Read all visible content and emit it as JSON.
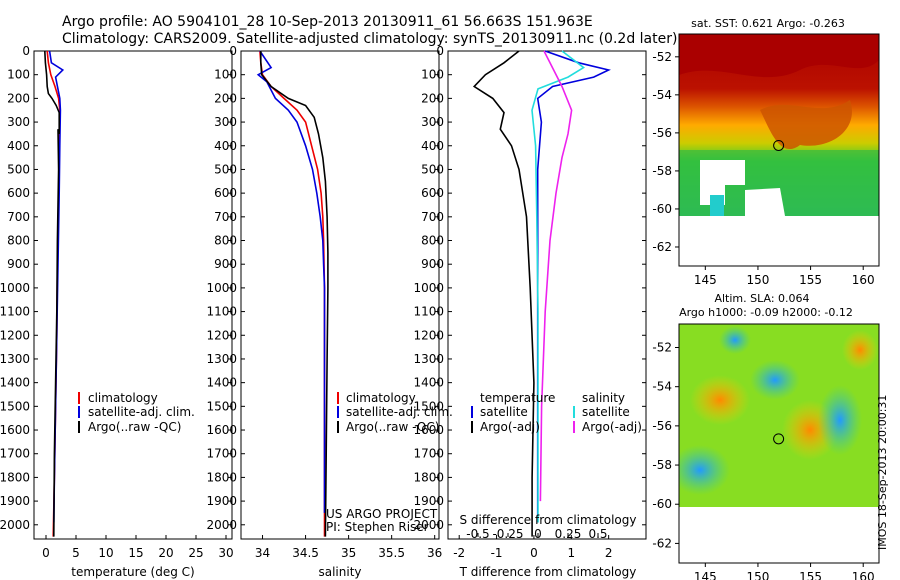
{
  "header": {
    "title_line1": "Argo profile: AO 5904101_28 10-Sep-2013 20130911_61 56.663S 151.963E",
    "title_line2": "Climatology: CARS2009. Satellite-adjusted climatology: synTS_20130911.nc (0.2d later)"
  },
  "stamp": "IMOS 18-Sep-2013 20:00:31",
  "colors": {
    "climatology": "#ee0000",
    "satellite": "#0000dd",
    "argo": "#000000",
    "cyan": "#22dddd",
    "magenta": "#ee22ee"
  },
  "depth_ticks": [
    0,
    100,
    200,
    300,
    400,
    500,
    600,
    700,
    800,
    900,
    1000,
    1100,
    1200,
    1300,
    1400,
    1500,
    1600,
    1700,
    1800,
    1900,
    2000
  ],
  "chart_data": [
    {
      "type": "line",
      "id": "temperature",
      "xlabel": "temperature (deg C)",
      "ylabel": "",
      "xlim": [
        -2,
        31
      ],
      "ylim": [
        2060,
        0
      ],
      "xticks": [
        0,
        5,
        10,
        15,
        20,
        25,
        30
      ],
      "legend": [
        "climatology",
        "satellite-adj. clim.",
        "Argo(..raw -QC)"
      ],
      "series": [
        {
          "name": "climatology",
          "color": "#ee0000",
          "x": [
            0.2,
            0.4,
            0.8,
            1.5,
            2.1,
            2.3,
            2.2,
            2.1,
            1.9,
            1.8,
            1.6,
            1.4,
            1.2
          ],
          "depth": [
            0,
            50,
            100,
            150,
            200,
            250,
            400,
            600,
            900,
            1200,
            1500,
            1800,
            2050
          ]
        },
        {
          "name": "satellite-adj. clim.",
          "color": "#0000dd",
          "x": [
            0.6,
            0.9,
            2.8,
            1.6,
            2.3,
            2.4,
            2.3,
            2.2,
            2.0,
            1.8,
            1.6,
            1.4,
            1.3
          ],
          "depth": [
            0,
            50,
            80,
            110,
            200,
            250,
            400,
            600,
            900,
            1200,
            1500,
            1800,
            1990
          ]
        },
        {
          "name": "Argo(..raw -QC)",
          "color": "#000000",
          "x": [
            -0.2,
            -0.1,
            0.1,
            0.2,
            0.4,
            1.0,
            1.7,
            2.2,
            2.2,
            2.0,
            2.1,
            1.9,
            1.8,
            1.6,
            1.4,
            1.3
          ],
          "depth": [
            0,
            50,
            100,
            150,
            180,
            200,
            230,
            260,
            350,
            330,
            500,
            800,
            1100,
            1400,
            1700,
            2050
          ]
        }
      ]
    },
    {
      "type": "line",
      "id": "salinity",
      "xlabel": "salinity",
      "ylabel": "",
      "xlim": [
        33.75,
        36.05
      ],
      "ylim": [
        2060,
        0
      ],
      "xticks": [
        34,
        34.5,
        35,
        35.5,
        36
      ],
      "legend": [
        "climatology",
        "satellite-adj. clim.",
        "Argo(..raw -QC)"
      ],
      "annotation": [
        "US ARGO PROJECT",
        "PI: Stephen Riser"
      ],
      "series": [
        {
          "name": "climatology",
          "color": "#ee0000",
          "x": [
            33.97,
            33.98,
            34.0,
            34.1,
            34.25,
            34.4,
            34.5,
            34.57,
            34.64,
            34.68,
            34.7,
            34.71,
            34.72,
            34.72,
            34.72,
            34.72
          ],
          "depth": [
            0,
            50,
            100,
            150,
            200,
            250,
            300,
            400,
            500,
            600,
            700,
            800,
            1000,
            1400,
            1800,
            2050
          ]
        },
        {
          "name": "satellite-adj. clim.",
          "color": "#0000dd",
          "x": [
            33.97,
            34.1,
            33.95,
            34.05,
            34.15,
            34.3,
            34.4,
            34.5,
            34.58,
            34.63,
            34.67,
            34.7,
            34.71,
            34.72,
            34.72,
            34.72,
            34.72
          ],
          "depth": [
            0,
            70,
            100,
            130,
            200,
            250,
            300,
            400,
            500,
            600,
            700,
            800,
            900,
            1000,
            1400,
            1800,
            1950
          ]
        },
        {
          "name": "Argo(..raw -QC)",
          "color": "#000000",
          "x": [
            33.98,
            33.98,
            33.99,
            34.1,
            34.3,
            34.5,
            34.6,
            34.65,
            34.7,
            34.73,
            34.75,
            34.76,
            34.76,
            34.75,
            34.74,
            34.73
          ],
          "depth": [
            0,
            50,
            100,
            150,
            200,
            230,
            280,
            350,
            450,
            550,
            700,
            850,
            1000,
            1300,
            1700,
            2050
          ]
        }
      ]
    },
    {
      "type": "line",
      "id": "difference",
      "xlabel": "T difference from climatology",
      "x2label": "S difference from climatology",
      "ylabel": "",
      "xlim": [
        -2.3,
        3.0
      ],
      "ylim": [
        2060,
        0
      ],
      "xticks": [
        -2,
        -1,
        0,
        1,
        2
      ],
      "x2lim": [
        -0.75,
        0.9
      ],
      "x2ticks": [
        -0.5,
        -0.25,
        0,
        0.25,
        0.5
      ],
      "legend_temperature": [
        "temperature",
        "satellite",
        "Argo(-adj)"
      ],
      "legend_salinity": [
        "salinity",
        "satellite",
        "Argo(-adj)"
      ],
      "series": [
        {
          "name": "satellite",
          "group": "temperature",
          "axis": "T",
          "color": "#0000dd",
          "x": [
            0.3,
            1.2,
            2.0,
            1.6,
            0.5,
            0.1,
            0.2,
            0.1,
            0.1,
            0.1,
            0.1,
            0.1,
            0.1
          ],
          "depth": [
            0,
            50,
            80,
            110,
            150,
            200,
            300,
            500,
            800,
            1100,
            1400,
            1700,
            1990
          ]
        },
        {
          "name": "Argo(-adj)",
          "group": "temperature",
          "axis": "T",
          "color": "#000000",
          "x": [
            -0.4,
            -0.8,
            -1.3,
            -1.6,
            -1.1,
            -0.8,
            -0.9,
            -0.6,
            -0.4,
            -0.2,
            -0.1,
            0.0,
            -0.05,
            -0.05
          ],
          "depth": [
            0,
            50,
            100,
            150,
            200,
            260,
            330,
            400,
            500,
            700,
            1000,
            1400,
            1800,
            2050
          ]
        },
        {
          "name": "satellite",
          "group": "salinity",
          "axis": "S",
          "color": "#22dddd",
          "x": [
            0.2,
            0.38,
            0.25,
            0.0,
            -0.05,
            -0.02,
            -0.01,
            0.0,
            0.0
          ],
          "depth": [
            0,
            70,
            110,
            160,
            250,
            400,
            700,
            1100,
            1990
          ]
        },
        {
          "name": "Argo(-adj)",
          "group": "salinity",
          "axis": "S",
          "color": "#ee22ee",
          "x": [
            0.05,
            0.1,
            0.2,
            0.28,
            0.25,
            0.2,
            0.15,
            0.1,
            0.06,
            0.03,
            0.02
          ],
          "depth": [
            0,
            50,
            150,
            250,
            350,
            450,
            600,
            800,
            1100,
            1500,
            1900
          ]
        }
      ]
    },
    {
      "type": "heatmap",
      "id": "sst_map",
      "title": "sat. SST: 0.621 Argo: -0.263",
      "xlim": [
        142.5,
        161.5
      ],
      "ylim": [
        -63,
        -50.8
      ],
      "xticks": [
        145,
        150,
        155,
        160
      ],
      "yticks": [
        -52,
        -54,
        -56,
        -58,
        -60,
        -62
      ],
      "marker": {
        "lon": 151.963,
        "lat": -56.663
      }
    },
    {
      "type": "heatmap",
      "id": "sla_map",
      "title": "Altim. SLA: 0.064",
      "subtitle": "Argo h1000: -0.09 h2000: -0.12",
      "xlim": [
        142.5,
        161.5
      ],
      "ylim": [
        -63,
        -50.8
      ],
      "xticks": [
        145,
        150,
        155,
        160
      ],
      "yticks": [
        -52,
        -54,
        -56,
        -58,
        -60,
        -62
      ],
      "marker": {
        "lon": 151.963,
        "lat": -56.663
      }
    }
  ]
}
